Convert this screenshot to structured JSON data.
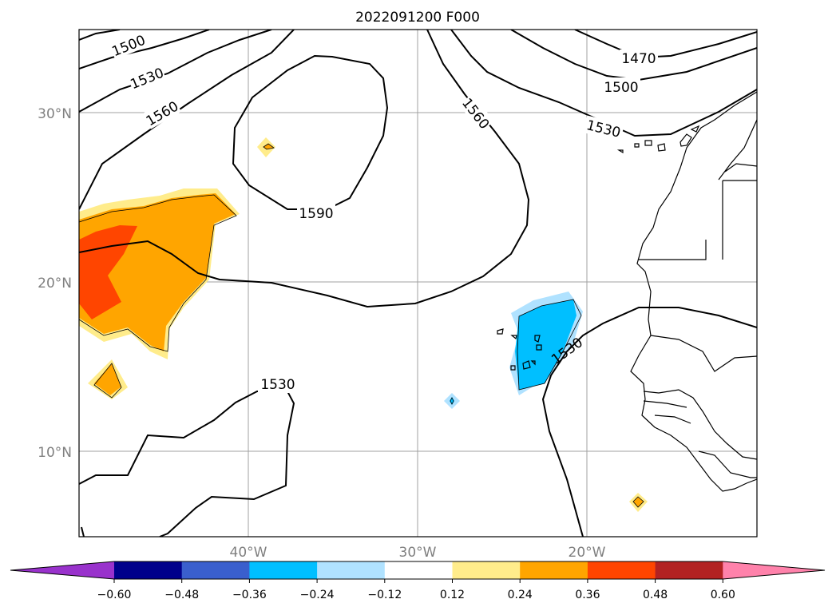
{
  "map": {
    "title": "2022091200 F000",
    "lat_labels": [
      "30°N",
      "20°N",
      "10°N"
    ],
    "lon_labels": [
      "40°W",
      "30°W",
      "20°W"
    ],
    "contour_labels": [
      "1500",
      "1530",
      "1560",
      "1470",
      "1500",
      "1560",
      "1530",
      "1590",
      "1530",
      "1530"
    ]
  },
  "colorbar": {
    "tick_labels": [
      "−0.60",
      "−0.48",
      "−0.36",
      "−0.24",
      "−0.12",
      "0.12",
      "0.24",
      "0.36",
      "0.48",
      "0.60"
    ],
    "colors": [
      "#9932cc",
      "#00008b",
      "#3a5fcd",
      "#00bfff",
      "#b0e2ff",
      "#ffffff",
      "#ffec8b",
      "#ffa500",
      "#ff4500",
      "#b22222",
      "#ff82ab"
    ]
  }
}
